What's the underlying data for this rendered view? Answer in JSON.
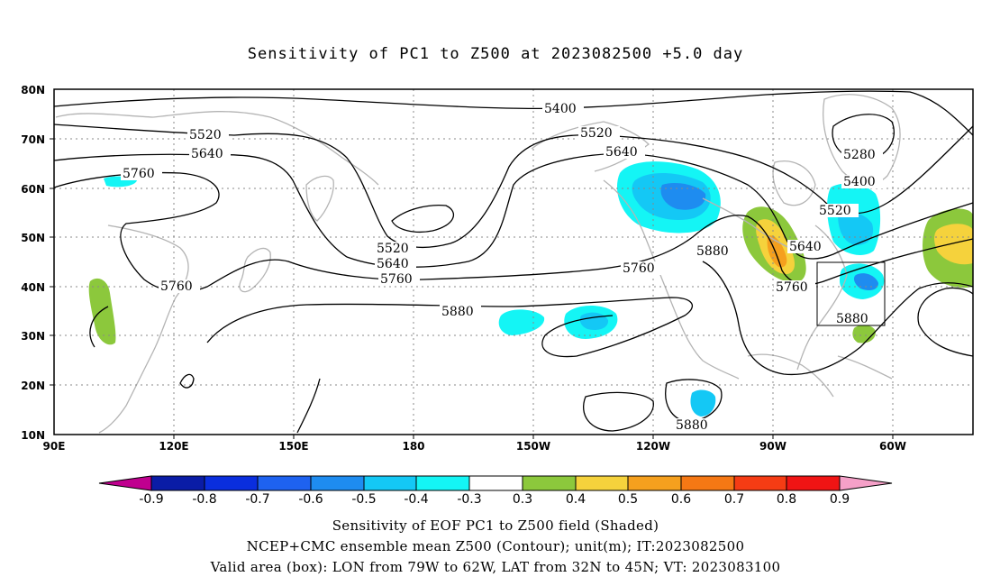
{
  "title": "Sensitivity of PC1 to Z500 at 2023082500 +5.0 day",
  "axes": {
    "lon_ticks": [
      "90E",
      "120E",
      "150E",
      "180",
      "150W",
      "120W",
      "90W",
      "60W"
    ],
    "lat_ticks": [
      "80N",
      "70N",
      "60N",
      "50N",
      "40N",
      "30N",
      "20N",
      "10N"
    ]
  },
  "colorbar": {
    "labels": [
      "-0.9",
      "-0.8",
      "-0.7",
      "-0.6",
      "-0.5",
      "-0.4",
      "-0.3",
      "0.3",
      "0.4",
      "0.5",
      "0.6",
      "0.7",
      "0.8",
      "0.9"
    ],
    "colors": [
      "#c0008f",
      "#0a1ca6",
      "#0a2ede",
      "#1e62f0",
      "#1e8cf0",
      "#14c8f5",
      "#14f5f5",
      "#ffffff",
      "#8cc83c",
      "#f5d23c",
      "#f5a01e",
      "#f57814",
      "#f53c14",
      "#f01414",
      "#f5a0c8"
    ]
  },
  "contour_labels": [
    {
      "id": "c5400a",
      "text": "5400"
    },
    {
      "id": "c5520a",
      "text": "5520"
    },
    {
      "id": "c5640a",
      "text": "5640"
    },
    {
      "id": "c5760a",
      "text": "5760"
    },
    {
      "id": "c5520b",
      "text": "5520"
    },
    {
      "id": "c5640b",
      "text": "5640"
    },
    {
      "id": "c5760b",
      "text": "5760"
    },
    {
      "id": "c5880a",
      "text": "5880"
    },
    {
      "id": "c5520c",
      "text": "5520"
    },
    {
      "id": "c5640c",
      "text": "5640"
    },
    {
      "id": "c5760c",
      "text": "5760"
    },
    {
      "id": "c5880b",
      "text": "5880"
    },
    {
      "id": "c5640d",
      "text": "5640"
    },
    {
      "id": "c5760d",
      "text": "5760"
    },
    {
      "id": "c5280a",
      "text": "5280"
    },
    {
      "id": "c5400b",
      "text": "5400"
    },
    {
      "id": "c5520d",
      "text": "5520"
    },
    {
      "id": "c5880c",
      "text": "5880"
    },
    {
      "id": "c5880d",
      "text": "5880"
    },
    {
      "id": "c5760e",
      "text": "5760"
    }
  ],
  "captions": {
    "line1": "Sensitivity of EOF PC1 to Z500 field (Shaded)",
    "line2": "NCEP+CMC ensemble mean Z500 (Contour); unit(m); IT:2023082500",
    "line3": "Valid area (box): LON from 79W to 62W, LAT from 32N to 45N; VT: 2023083100"
  }
}
